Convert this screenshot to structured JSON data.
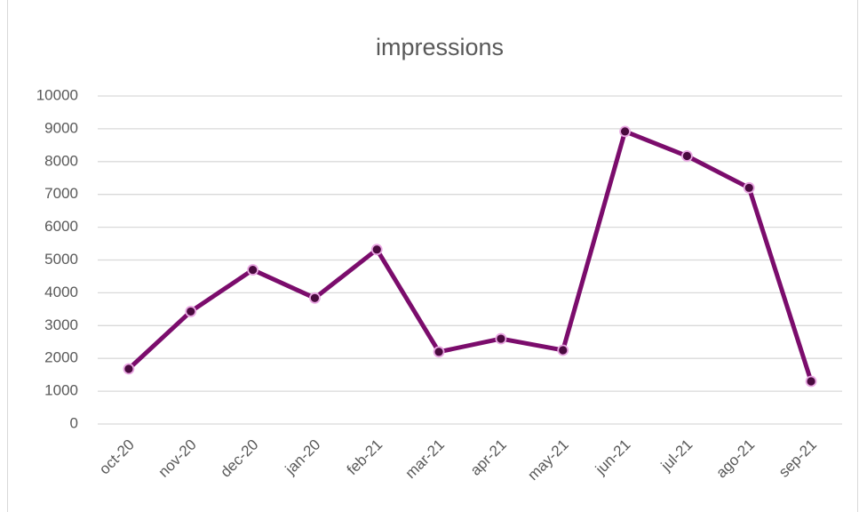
{
  "chart_data": {
    "type": "line",
    "title": "impressions",
    "categories": [
      "oct-20",
      "nov-20",
      "dec-20",
      "jan-20",
      "feb-21",
      "mar-21",
      "apr-21",
      "may-21",
      "jun-21",
      "jul-21",
      "ago-21",
      "sep-21"
    ],
    "series": [
      {
        "name": "impressions",
        "color": "#7b0c6c",
        "values": [
          1680,
          3430,
          4700,
          3840,
          5320,
          2200,
          2600,
          2250,
          8920,
          8170,
          7200,
          1300
        ]
      }
    ],
    "ylim": [
      0,
      10000
    ],
    "yticks": [
      0,
      1000,
      2000,
      3000,
      4000,
      5000,
      6000,
      7000,
      8000,
      9000,
      10000
    ],
    "grid": true
  }
}
